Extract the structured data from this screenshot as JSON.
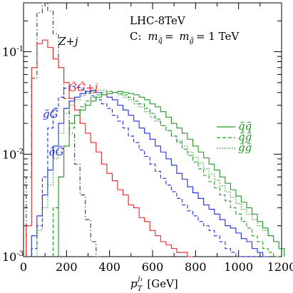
{
  "chart_data": {
    "type": "line",
    "title_lines": [
      "LHC-8TeV",
      "C: m̃q = m̃g = 1 TeV"
    ],
    "annotation": {
      "collider": "LHC-8TeV",
      "point_label": "C:",
      "mass_q": "m",
      "mass_q_sub": "q̃",
      "eq": "=",
      "mass_g": "m",
      "mass_g_sub": "g̃",
      "mass_value": "= 1 TeV"
    },
    "xlabel": {
      "main": "p",
      "sub": "T",
      "sup": "j₁",
      "unit": "[GeV]"
    },
    "xlim": [
      0,
      1200
    ],
    "ylim": [
      0.001,
      0.3
    ],
    "yscale": "log",
    "x_ticks": [
      0,
      200,
      400,
      600,
      800,
      1000,
      1200
    ],
    "x_tick_labels": [
      "0",
      "200",
      "400",
      "600",
      "800",
      "1000",
      "1200"
    ],
    "y_ticks": [
      0.1,
      0.01,
      0.001
    ],
    "y_tick_labels": [
      {
        "base": "10",
        "exp": "-1"
      },
      {
        "base": "10",
        "exp": "-2"
      },
      {
        "base": "10",
        "exp": "-3"
      }
    ],
    "bin_width": 25,
    "series": [
      {
        "name": "Z+j",
        "color": "#333333",
        "dash": "dashdot",
        "x": [
          25,
          50,
          75,
          100,
          125,
          150,
          175,
          200,
          225,
          250,
          275,
          300,
          325,
          350
        ],
        "values": [
          0.006,
          0.055,
          0.24,
          0.3,
          0.25,
          0.15,
          0.07,
          0.035,
          0.016,
          0.008,
          0.004,
          0.0023,
          0.0014,
          0.001
        ]
      },
      {
        "name": "G̃G̃+j",
        "color": "#ee2222",
        "dash": "solid",
        "x": [
          25,
          50,
          75,
          100,
          125,
          150,
          175,
          200,
          225,
          250,
          275,
          300,
          325,
          350,
          375,
          400,
          425,
          450,
          475,
          500,
          525,
          550,
          575,
          600,
          625,
          650,
          675,
          700,
          725,
          750,
          775
        ],
        "values": [
          0.002,
          0.07,
          0.12,
          0.13,
          0.11,
          0.085,
          0.07,
          0.05,
          0.035,
          0.027,
          0.02,
          0.016,
          0.013,
          0.0105,
          0.008,
          0.0065,
          0.0055,
          0.0045,
          0.004,
          0.0032,
          0.003,
          0.0024,
          0.0022,
          0.0018,
          0.0016,
          0.0014,
          0.0013,
          0.0012,
          0.0011,
          0.0011,
          0.001
        ]
      },
      {
        "name": "q̃G̃ (solid)",
        "color": "#1a2ee0",
        "dash": "solid",
        "x": [
          50,
          75,
          100,
          125,
          150,
          175,
          200,
          225,
          250,
          275,
          300,
          325,
          350,
          375,
          400,
          425,
          450,
          475,
          500,
          525,
          550,
          575,
          600,
          625,
          650,
          675,
          700,
          725,
          750,
          775,
          800,
          825,
          850,
          875,
          900,
          925,
          950,
          975,
          1000,
          1025,
          1050,
          1075,
          1100,
          1125
        ],
        "values": [
          0.0016,
          0.0025,
          0.004,
          0.007,
          0.012,
          0.02,
          0.028,
          0.033,
          0.036,
          0.039,
          0.041,
          0.042,
          0.04,
          0.038,
          0.036,
          0.034,
          0.03,
          0.027,
          0.024,
          0.021,
          0.018,
          0.016,
          0.014,
          0.012,
          0.0105,
          0.009,
          0.0078,
          0.0065,
          0.0057,
          0.0048,
          0.0042,
          0.0037,
          0.0032,
          0.0029,
          0.0026,
          0.0023,
          0.002,
          0.0019,
          0.0017,
          0.0015,
          0.0014,
          0.0012,
          0.0011,
          0.001
        ]
      },
      {
        "name": "g̃G̃ (dashed)",
        "color": "#1a2ee0",
        "dash": "dashed",
        "x": [
          50,
          75,
          100,
          125,
          150,
          175,
          200,
          225,
          250,
          275,
          300,
          325,
          350,
          375,
          400,
          425,
          450,
          475,
          500,
          525,
          550,
          575,
          600,
          625,
          650,
          675,
          700,
          725,
          750,
          775,
          800,
          825,
          850,
          875,
          900,
          925,
          950,
          975,
          1000,
          1025,
          1050,
          1075
        ],
        "values": [
          0.0012,
          0.002,
          0.006,
          0.018,
          0.028,
          0.036,
          0.044,
          0.046,
          0.045,
          0.043,
          0.04,
          0.037,
          0.034,
          0.031,
          0.028,
          0.024,
          0.021,
          0.018,
          0.015,
          0.013,
          0.011,
          0.0095,
          0.008,
          0.0068,
          0.0058,
          0.005,
          0.0043,
          0.0037,
          0.0032,
          0.0028,
          0.0025,
          0.0022,
          0.002,
          0.0018,
          0.0016,
          0.0014,
          0.0012,
          0.0011,
          0.001,
          0.001,
          0.001,
          0.001
        ]
      },
      {
        "name": "q̃q̃",
        "color": "#229922",
        "dash": "solid",
        "x": [
          175,
          200,
          225,
          250,
          275,
          300,
          325,
          350,
          375,
          400,
          425,
          450,
          475,
          500,
          525,
          550,
          575,
          600,
          625,
          650,
          675,
          700,
          725,
          750,
          775,
          800,
          825,
          850,
          875,
          900,
          925,
          950,
          975,
          1000,
          1025,
          1050,
          1075,
          1100,
          1125,
          1150,
          1175,
          1200
        ],
        "values": [
          0.006,
          0.012,
          0.02,
          0.024,
          0.027,
          0.03,
          0.033,
          0.036,
          0.038,
          0.039,
          0.04,
          0.041,
          0.04,
          0.039,
          0.038,
          0.036,
          0.034,
          0.031,
          0.029,
          0.026,
          0.023,
          0.02,
          0.018,
          0.016,
          0.014,
          0.012,
          0.0105,
          0.0092,
          0.008,
          0.007,
          0.006,
          0.0052,
          0.0045,
          0.0039,
          0.0034,
          0.003,
          0.0026,
          0.0022,
          0.0019,
          0.0016,
          0.0014,
          0.0012
        ]
      },
      {
        "name": "q̃g̃",
        "color": "#229922",
        "dash": "dashed",
        "x": [
          150,
          175,
          200,
          225,
          250,
          275,
          300,
          325,
          350,
          375,
          400,
          425,
          450,
          475,
          500,
          525,
          550,
          575,
          600,
          625,
          650,
          675,
          700,
          725,
          750,
          775,
          800,
          825,
          850,
          875,
          900,
          925,
          950,
          975,
          1000,
          1025,
          1050,
          1075,
          1100,
          1125,
          1150,
          1175
        ],
        "values": [
          0.003,
          0.006,
          0.012,
          0.018,
          0.024,
          0.029,
          0.033,
          0.036,
          0.038,
          0.04,
          0.041,
          0.04,
          0.039,
          0.038,
          0.036,
          0.033,
          0.031,
          0.028,
          0.025,
          0.022,
          0.019,
          0.017,
          0.015,
          0.013,
          0.0112,
          0.0097,
          0.0084,
          0.0072,
          0.0062,
          0.0054,
          0.0047,
          0.004,
          0.0035,
          0.003,
          0.0026,
          0.0022,
          0.0019,
          0.0016,
          0.0014,
          0.0012,
          0.0011,
          0.001
        ]
      },
      {
        "name": "g̃g̃",
        "color": "#229922",
        "dash": "dotted",
        "x": [
          75,
          100,
          125,
          150,
          175,
          200,
          225,
          250,
          275,
          300,
          325,
          350,
          375,
          400,
          425,
          450,
          475,
          500,
          525,
          550,
          575,
          600,
          625,
          650,
          675,
          700,
          725,
          750,
          775,
          800,
          825,
          850,
          875,
          900,
          925,
          950,
          975,
          1000,
          1025,
          1050,
          1075,
          1100,
          1125,
          1150,
          1175,
          1200
        ],
        "values": [
          0.0018,
          0.003,
          0.005,
          0.009,
          0.016,
          0.025,
          0.03,
          0.034,
          0.037,
          0.039,
          0.041,
          0.042,
          0.042,
          0.041,
          0.04,
          0.038,
          0.036,
          0.034,
          0.031,
          0.029,
          0.026,
          0.023,
          0.021,
          0.019,
          0.017,
          0.015,
          0.0135,
          0.012,
          0.0105,
          0.0093,
          0.0082,
          0.0072,
          0.0064,
          0.0056,
          0.0049,
          0.0043,
          0.0038,
          0.0033,
          0.0029,
          0.0026,
          0.0023,
          0.002,
          0.0018,
          0.0016,
          0.0014,
          0.0012
        ]
      }
    ],
    "labels": {
      "zj": "Z+j",
      "ggj": "G̃G̃+j",
      "gG": "g̃G̃",
      "qG": "q̃G̃"
    },
    "legend": {
      "placement": "right",
      "entries": [
        {
          "label": "q̃q̃",
          "color": "#229922",
          "dash": "solid"
        },
        {
          "label": "q̃g̃",
          "color": "#229922",
          "dash": "dashed"
        },
        {
          "label": "g̃g̃",
          "color": "#229922",
          "dash": "dotted"
        }
      ]
    },
    "grid": false
  }
}
